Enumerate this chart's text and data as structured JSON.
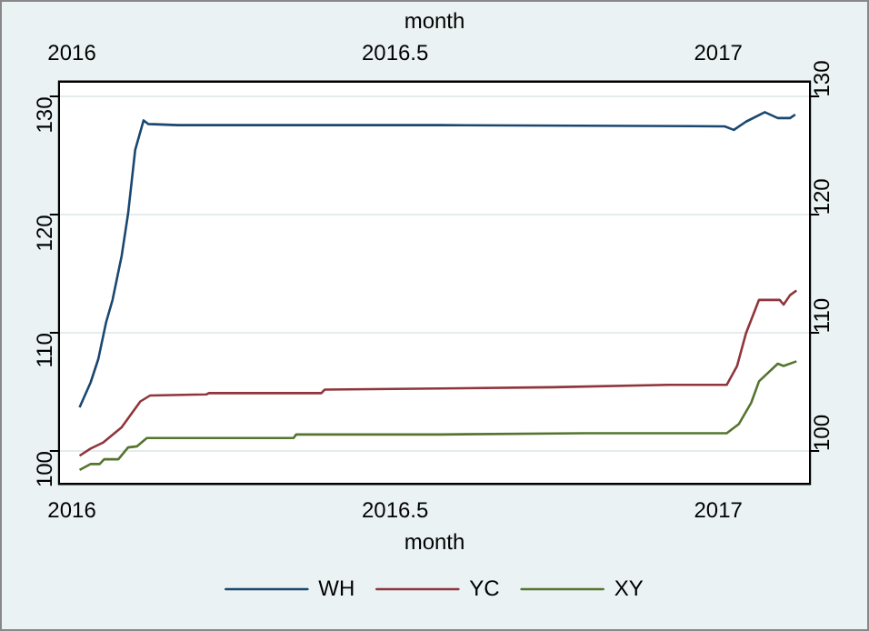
{
  "chart_data": {
    "type": "line",
    "xlabel": "month",
    "x2label": "month",
    "xlim": [
      2015.98,
      2017.142
    ],
    "xticks": [
      2016,
      2016.5,
      2017
    ],
    "x2lim": [
      2015.98,
      2017.142
    ],
    "x2ticks": [
      2016,
      2016.5,
      2017
    ],
    "ylim": [
      97.2,
      131.3
    ],
    "yticks": [
      100,
      110,
      120,
      130
    ],
    "y2lim": [
      97.2,
      131.3
    ],
    "y2ticks": [
      100,
      110,
      120,
      130
    ],
    "grid": "y",
    "legend": "bottom",
    "marker": "none",
    "line_style": "solid",
    "series": [
      {
        "name": "WH",
        "color": "#1a476f",
        "x": [
          2016.012,
          2016.029,
          2016.041,
          2016.053,
          2016.063,
          2016.077,
          2016.087,
          2016.098,
          2016.111,
          2016.118,
          2016.164,
          2016.57,
          2017.01,
          2017.024,
          2017.043,
          2017.072,
          2017.092,
          2017.111,
          2017.119
        ],
        "values": [
          103.7,
          105.8,
          107.8,
          110.9,
          112.8,
          116.5,
          120.1,
          125.5,
          128.0,
          127.7,
          127.6,
          127.6,
          127.5,
          127.2,
          127.9,
          128.7,
          128.2,
          128.2,
          128.5
        ]
      },
      {
        "name": "YC",
        "color": "#90353b",
        "x": [
          2016.012,
          2016.029,
          2016.048,
          2016.077,
          2016.106,
          2016.121,
          2016.208,
          2016.212,
          2016.386,
          2016.391,
          2016.57,
          2016.744,
          2016.923,
          2017.013,
          2017.029,
          2017.043,
          2017.063,
          2017.095,
          2017.101,
          2017.111,
          2017.121
        ],
        "values": [
          99.6,
          100.2,
          100.7,
          102.0,
          104.2,
          104.7,
          104.8,
          104.9,
          104.9,
          105.2,
          105.3,
          105.4,
          105.6,
          105.6,
          107.2,
          110.0,
          112.8,
          112.8,
          112.4,
          113.2,
          113.6
        ]
      },
      {
        "name": "XY",
        "color": "#55752f",
        "x": [
          2016.012,
          2016.029,
          2016.043,
          2016.05,
          2016.072,
          2016.087,
          2016.101,
          2016.116,
          2016.343,
          2016.347,
          2016.57,
          2016.792,
          2017.013,
          2017.032,
          2017.051,
          2017.063,
          2017.092,
          2017.101,
          2017.121
        ],
        "values": [
          98.4,
          98.9,
          98.9,
          99.3,
          99.3,
          100.3,
          100.4,
          101.1,
          101.1,
          101.4,
          101.4,
          101.5,
          101.5,
          102.3,
          104.1,
          105.9,
          107.4,
          107.2,
          107.6
        ]
      }
    ]
  }
}
